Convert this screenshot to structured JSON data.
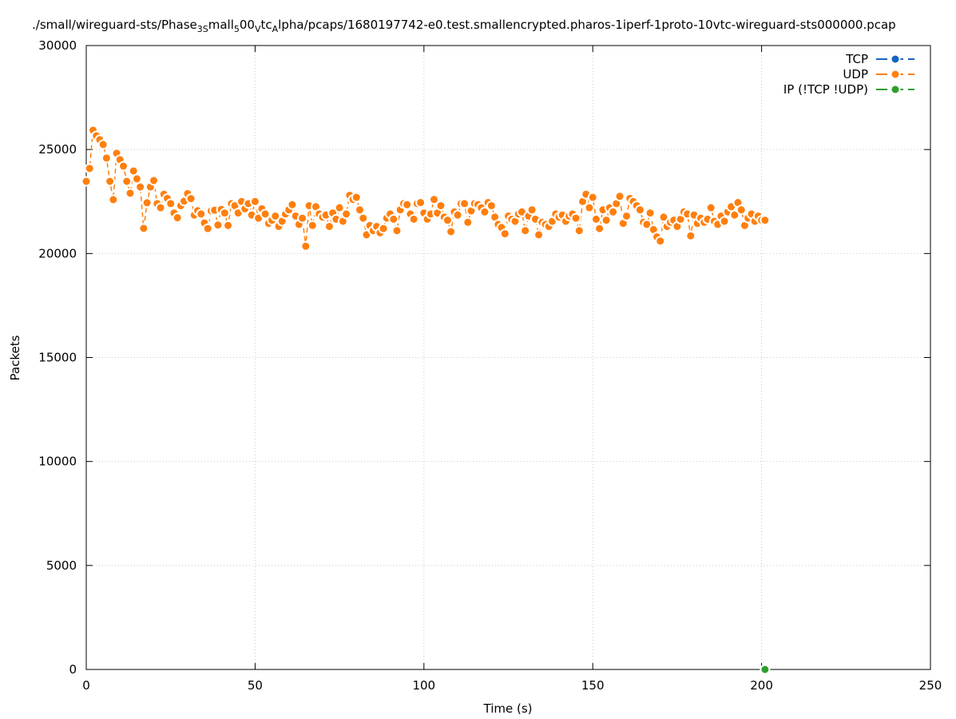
{
  "chart_data": {
    "type": "line",
    "title_parts": [
      {
        "text": "./small/wireguard-sts/Phase"
      },
      {
        "text": "3S",
        "sub": true
      },
      {
        "text": "mall"
      },
      {
        "text": "5",
        "sub": true
      },
      {
        "text": "00"
      },
      {
        "text": "V",
        "sub": true
      },
      {
        "text": "tc"
      },
      {
        "text": "A",
        "sub": true
      },
      {
        "text": "lpha/pcaps/1680197742-e0.test.smallencrypted.pharos-1iperf-1proto-10vtc-wireguard-sts000000.pcap"
      }
    ],
    "xlabel": "Time (s)",
    "ylabel": "Packets",
    "xlim": [
      0,
      250
    ],
    "xticks": [
      0,
      50,
      100,
      150,
      200,
      250
    ],
    "ylim": [
      0,
      30000
    ],
    "yticks": [
      0,
      5000,
      10000,
      15000,
      20000,
      25000,
      30000
    ],
    "grid": true,
    "legend": "top-right",
    "series": [
      {
        "name": "TCP",
        "color": "#1565c0",
        "x": [],
        "values": []
      },
      {
        "name": "UDP",
        "color": "#ff7f0e",
        "x": [
          0,
          1,
          2,
          3,
          4,
          5,
          6,
          7,
          8,
          9,
          10,
          11,
          12,
          13,
          14,
          15,
          16,
          17,
          18,
          19,
          20,
          21,
          22,
          23,
          24,
          25,
          26,
          27,
          28,
          29,
          30,
          31,
          32,
          33,
          34,
          35,
          36,
          37,
          38,
          39,
          40,
          41,
          42,
          43,
          44,
          45,
          46,
          47,
          48,
          49,
          50,
          51,
          52,
          53,
          54,
          55,
          56,
          57,
          58,
          59,
          60,
          61,
          62,
          63,
          64,
          65,
          66,
          67,
          68,
          69,
          70,
          71,
          72,
          73,
          74,
          75,
          76,
          77,
          78,
          79,
          80,
          81,
          82,
          83,
          84,
          85,
          86,
          87,
          88,
          89,
          90,
          91,
          92,
          93,
          94,
          95,
          96,
          97,
          98,
          99,
          100,
          101,
          102,
          103,
          104,
          105,
          106,
          107,
          108,
          109,
          110,
          111,
          112,
          113,
          114,
          115,
          116,
          117,
          118,
          119,
          120,
          121,
          122,
          123,
          124,
          125,
          126,
          127,
          128,
          129,
          130,
          131,
          132,
          133,
          134,
          135,
          136,
          137,
          138,
          139,
          140,
          141,
          142,
          143,
          144,
          145,
          146,
          147,
          148,
          149,
          150,
          151,
          152,
          153,
          154,
          155,
          156,
          157,
          158,
          159,
          160,
          161,
          162,
          163,
          164,
          165,
          166,
          167,
          168,
          169,
          170,
          171,
          172,
          173,
          174,
          175,
          176,
          177,
          178,
          179,
          180,
          181,
          182,
          183,
          184,
          185,
          186,
          187,
          188,
          189,
          190,
          191,
          192,
          193,
          194,
          195,
          196,
          197,
          198,
          199,
          200,
          201
        ],
        "values": [
          23470,
          24090,
          25930,
          25660,
          25470,
          25240,
          24590,
          23470,
          22590,
          24820,
          24510,
          24200,
          23470,
          22900,
          23970,
          23590,
          23200,
          21210,
          22440,
          23200,
          23510,
          22400,
          22200,
          22850,
          22650,
          22400,
          21950,
          21720,
          22300,
          22520,
          22880,
          22640,
          21850,
          22060,
          21900,
          21470,
          21200,
          22050,
          22080,
          21370,
          22120,
          21950,
          21350,
          22400,
          22300,
          21950,
          22500,
          22150,
          22400,
          21850,
          22500,
          21700,
          22150,
          21900,
          21450,
          21600,
          21800,
          21300,
          21550,
          21900,
          22100,
          22350,
          21800,
          21400,
          21700,
          20350,
          22300,
          21350,
          22250,
          21900,
          21750,
          21850,
          21300,
          21950,
          21650,
          22200,
          21550,
          21900,
          22800,
          22600,
          22700,
          22100,
          21700,
          20900,
          21350,
          21100,
          21300,
          21000,
          21200,
          21700,
          21900,
          21650,
          21100,
          22100,
          22400,
          22350,
          21900,
          21650,
          22400,
          22450,
          21950,
          21650,
          21900,
          22600,
          21950,
          22300,
          21750,
          21600,
          21050,
          22000,
          21850,
          22400,
          22400,
          21500,
          22050,
          22400,
          22350,
          22200,
          22000,
          22450,
          22300,
          21750,
          21400,
          21250,
          20950,
          21800,
          21650,
          21550,
          21900,
          22000,
          21100,
          21800,
          22100,
          21650,
          20900,
          21500,
          21400,
          21300,
          21550,
          21900,
          21750,
          21850,
          21550,
          21800,
          21900,
          21700,
          21100,
          22500,
          22850,
          22200,
          22700,
          21650,
          21200,
          22100,
          21600,
          22200,
          22000,
          22400,
          22750,
          21450,
          21800,
          22650,
          22500,
          22300,
          22100,
          21500,
          21400,
          21950,
          21150,
          20800,
          20600,
          21750,
          21300,
          21500,
          21600,
          21300,
          21650,
          22000,
          21900,
          20850,
          21850,
          21450,
          21700,
          21500,
          21650,
          22200,
          21550,
          21400,
          21800,
          21550,
          22000,
          22250,
          21850,
          22450,
          22100,
          21350,
          21700,
          21900,
          21550,
          21800,
          21600,
          21600
        ]
      },
      {
        "name": "IP (!TCP  !UDP)",
        "color": "#2ca02c",
        "x": [
          201
        ],
        "values": [
          0
        ]
      }
    ]
  }
}
